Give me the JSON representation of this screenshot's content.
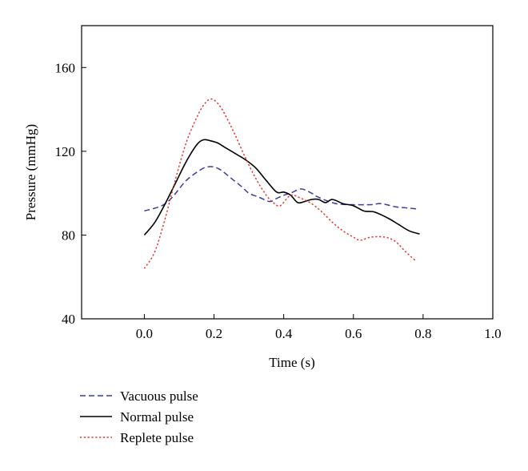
{
  "chart_data": {
    "type": "line",
    "title": "",
    "xlabel": "Time (s)",
    "ylabel": "Pressure (mmHg)",
    "xlim": [
      -0.18,
      1.0
    ],
    "ylim": [
      40,
      180
    ],
    "x_ticks": [
      0.0,
      0.2,
      0.4,
      0.6,
      0.8,
      1.0
    ],
    "x_tick_labels": [
      "0.0",
      "0.2",
      "0.4",
      "0.6",
      "0.8",
      "1.0"
    ],
    "y_ticks": [
      40,
      80,
      120,
      160
    ],
    "y_tick_labels": [
      "40",
      "80",
      "120",
      "160"
    ],
    "grid": false,
    "legend_position": "bottom-left, below plot",
    "series": [
      {
        "name": "Vacuous pulse",
        "color": "#3a3aa8",
        "dash": "dashed",
        "x": [
          0.0,
          0.05,
          0.08,
          0.12,
          0.16,
          0.18,
          0.2,
          0.22,
          0.25,
          0.28,
          0.3,
          0.33,
          0.36,
          0.38,
          0.4,
          0.42,
          0.45,
          0.48,
          0.5,
          0.55,
          0.6,
          0.65,
          0.68,
          0.72,
          0.75,
          0.78
        ],
        "y": [
          91.5,
          94,
          98,
          106,
          111,
          112.5,
          112.5,
          111,
          107,
          103,
          100,
          98,
          96,
          97.5,
          99,
          100,
          102,
          100,
          98,
          95,
          94.5,
          94.5,
          95,
          93.5,
          93,
          92.5
        ]
      },
      {
        "name": "Normal pulse",
        "color": "#000000",
        "dash": "solid",
        "x": [
          0.0,
          0.03,
          0.06,
          0.09,
          0.12,
          0.15,
          0.17,
          0.19,
          0.21,
          0.23,
          0.26,
          0.29,
          0.32,
          0.35,
          0.38,
          0.4,
          0.42,
          0.44,
          0.46,
          0.48,
          0.5,
          0.52,
          0.54,
          0.57,
          0.6,
          0.63,
          0.66,
          0.7,
          0.73,
          0.76,
          0.79
        ],
        "y": [
          80,
          86,
          95,
          105,
          115,
          123,
          125.5,
          125,
          124,
          122,
          119,
          116,
          112,
          106,
          100.5,
          100.5,
          99,
          95.5,
          96,
          97,
          97,
          95.5,
          97,
          95,
          94,
          91.5,
          91,
          88,
          85,
          82,
          80.5
        ]
      },
      {
        "name": "Replete pulse",
        "color": "#e8332a",
        "dash": "dotted",
        "x": [
          0.0,
          0.03,
          0.06,
          0.09,
          0.12,
          0.15,
          0.17,
          0.19,
          0.21,
          0.23,
          0.26,
          0.29,
          0.32,
          0.35,
          0.37,
          0.39,
          0.42,
          0.45,
          0.48,
          0.51,
          0.54,
          0.57,
          0.6,
          0.62,
          0.65,
          0.69,
          0.72,
          0.75,
          0.78
        ],
        "y": [
          64,
          72,
          88,
          107,
          124,
          136,
          142,
          145,
          143,
          138,
          128,
          117,
          107,
          99,
          95.5,
          94,
          99,
          97.5,
          95,
          91,
          86,
          82,
          79,
          77.5,
          79,
          79,
          77,
          72,
          67.5
        ]
      }
    ]
  }
}
